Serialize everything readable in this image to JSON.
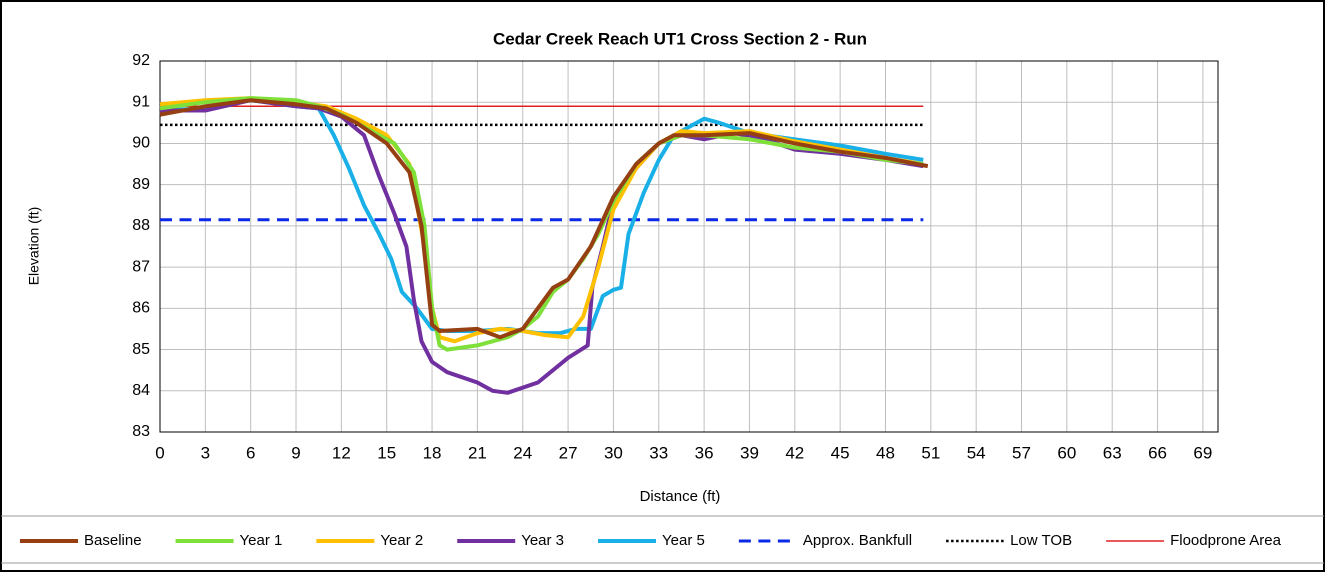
{
  "chart_data": {
    "type": "line",
    "title": "Cedar Creek Reach UT1 Cross Section 2 - Run",
    "xlabel": "Distance (ft)",
    "ylabel": "Elevation (ft)",
    "xlim": [
      0,
      70
    ],
    "xticks": [
      0,
      3,
      6,
      9,
      12,
      15,
      18,
      21,
      24,
      27,
      30,
      33,
      36,
      39,
      42,
      45,
      48,
      51,
      54,
      57,
      60,
      63,
      66,
      69
    ],
    "ylim": [
      83,
      92
    ],
    "yticks": [
      83,
      84,
      85,
      86,
      87,
      88,
      89,
      90,
      91,
      92
    ],
    "grid": true,
    "legend": "bottom",
    "series": [
      {
        "name": "Baseline",
        "color": "#953f13",
        "width": 4,
        "dash": "solid",
        "x": [
          0,
          3,
          6,
          9,
          11,
          13,
          15,
          16.5,
          17.3,
          18,
          18.5,
          21,
          22.5,
          24,
          26,
          27,
          28.5,
          30,
          31.5,
          33,
          34,
          36,
          39,
          42,
          45,
          48,
          50.8
        ],
        "values": [
          90.7,
          90.9,
          91.05,
          90.95,
          90.85,
          90.5,
          90,
          89.3,
          88,
          85.6,
          85.45,
          85.5,
          85.3,
          85.5,
          86.5,
          86.7,
          87.5,
          88.7,
          89.5,
          90,
          90.2,
          90.2,
          90.25,
          90,
          89.8,
          89.65,
          89.45
        ]
      },
      {
        "name": "Year 1",
        "color": "#7fe03a",
        "width": 4,
        "dash": "solid",
        "x": [
          0,
          3,
          6,
          9,
          10.5,
          12,
          14,
          15.5,
          16.8,
          17.5,
          18,
          18.5,
          19,
          21,
          23,
          24,
          25,
          26,
          27,
          28,
          29,
          30,
          31.5,
          33,
          34.5,
          36,
          39,
          42,
          45,
          48,
          50.5
        ],
        "values": [
          90.85,
          91,
          91.1,
          91.05,
          90.9,
          90.7,
          90.3,
          90,
          89.3,
          88,
          86,
          85.1,
          85,
          85.1,
          85.3,
          85.5,
          85.8,
          86.4,
          86.7,
          87.2,
          87.8,
          88.6,
          89.5,
          90,
          90.2,
          90.2,
          90.1,
          89.9,
          89.8,
          89.6,
          89.5
        ]
      },
      {
        "name": "Year 2",
        "color": "#ffc000",
        "width": 4,
        "dash": "solid",
        "x": [
          0,
          3,
          6,
          9,
          11,
          13,
          15,
          16.5,
          17.5,
          18,
          18.5,
          19.5,
          21,
          22.5,
          24,
          25.5,
          27,
          28,
          29,
          30,
          31.5,
          33,
          34.5,
          36,
          39,
          42,
          45,
          48,
          50.5
        ],
        "values": [
          90.95,
          91.05,
          91.1,
          91,
          90.9,
          90.6,
          90.2,
          89.5,
          87.5,
          86,
          85.3,
          85.2,
          85.4,
          85.5,
          85.45,
          85.35,
          85.3,
          85.8,
          87,
          88.4,
          89.4,
          90,
          90.3,
          90.25,
          90.3,
          90.05,
          89.85,
          89.65,
          89.5
        ]
      },
      {
        "name": "Year 3",
        "color": "#7030a0",
        "width": 4,
        "dash": "solid",
        "x": [
          0,
          3,
          6,
          9,
          10.5,
          12,
          13.5,
          14.5,
          15.5,
          16.3,
          16.8,
          17.3,
          18,
          19,
          21,
          22,
          23,
          25,
          27,
          28.3,
          28.6,
          29.3,
          30,
          31.5,
          33,
          34.5,
          36,
          38,
          40,
          42,
          45,
          48,
          50.5
        ],
        "values": [
          90.8,
          90.8,
          91.05,
          90.9,
          90.85,
          90.65,
          90.2,
          89.2,
          88.3,
          87.5,
          86.2,
          85.2,
          84.7,
          84.45,
          84.2,
          84,
          83.95,
          84.2,
          84.8,
          85.1,
          86.5,
          87.5,
          88.6,
          89.4,
          90,
          90.2,
          90.1,
          90.25,
          90.1,
          89.85,
          89.75,
          89.6,
          89.45
        ]
      },
      {
        "name": "Year 5",
        "color": "#19b0e8",
        "width": 4,
        "dash": "solid",
        "x": [
          0,
          3,
          6,
          9,
          10.5,
          11.5,
          12.5,
          13.5,
          14.5,
          15.3,
          16,
          17,
          18,
          19,
          21,
          23,
          25,
          26.5,
          27.5,
          28.5,
          29.3,
          30,
          30.5,
          31,
          32,
          33,
          34,
          36,
          37,
          39,
          42,
          45,
          48,
          50.5
        ],
        "values": [
          90.8,
          90.85,
          91.05,
          90.9,
          90.85,
          90.2,
          89.4,
          88.5,
          87.8,
          87.2,
          86.4,
          86,
          85.5,
          85.45,
          85.45,
          85.5,
          85.4,
          85.4,
          85.5,
          85.5,
          86.3,
          86.45,
          86.5,
          87.8,
          88.8,
          89.6,
          90.2,
          90.6,
          90.5,
          90.25,
          90.1,
          89.95,
          89.75,
          89.6
        ]
      },
      {
        "name": "Approx. Bankfull",
        "color": "#0a28e6",
        "width": 3,
        "dash": "dashed",
        "x": [
          0,
          50.5
        ],
        "values": [
          88.15,
          88.15
        ]
      },
      {
        "name": "Low TOB",
        "color": "#000000",
        "width": 2.5,
        "dash": "dotted",
        "x": [
          0,
          50.5
        ],
        "values": [
          90.45,
          90.45
        ]
      },
      {
        "name": "Floodprone Area",
        "color": "#e02020",
        "width": 1.5,
        "dash": "solid",
        "x": [
          0,
          50.5
        ],
        "values": [
          90.9,
          90.9
        ]
      }
    ]
  }
}
